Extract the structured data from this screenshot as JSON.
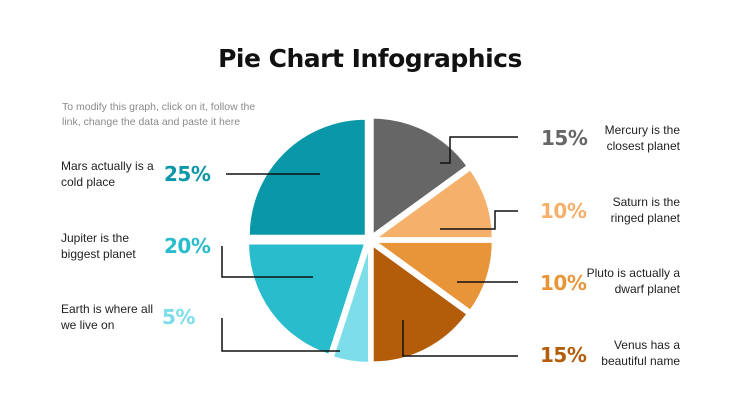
{
  "title": "Pie Chart Infographics",
  "note": "To modify this graph, click on it, follow the link, change the data and paste it here",
  "items": [
    {
      "desc": "Mars actually is a cold place",
      "pct": "25%",
      "color": "#0a97a8"
    },
    {
      "desc": "Jupiter is the biggest planet",
      "pct": "20%",
      "color": "#29bccc"
    },
    {
      "desc": "Earth is where all we live on",
      "pct": "5%",
      "color": "#7ddde9"
    },
    {
      "desc": "Mercury is the closest planet",
      "pct": "15%",
      "color": "#666666"
    },
    {
      "desc": "Saturn is the ringed planet",
      "pct": "10%",
      "color": "#f5b06b"
    },
    {
      "desc": "Pluto is actually a dwarf planet",
      "pct": "10%",
      "color": "#e8953a"
    },
    {
      "desc": "Venus has a beautiful name",
      "pct": "15%",
      "color": "#b35d0a"
    }
  ],
  "chart_data": {
    "type": "pie",
    "categories": [
      "Mercury",
      "Saturn",
      "Pluto",
      "Venus",
      "Earth",
      "Jupiter",
      "Mars"
    ],
    "values": [
      15,
      10,
      10,
      15,
      5,
      20,
      25
    ],
    "colors": [
      "#666666",
      "#f5b06b",
      "#e8953a",
      "#b35d0a",
      "#7ddde9",
      "#29bccc",
      "#0a97a8"
    ],
    "title": "Pie Chart Infographics"
  }
}
